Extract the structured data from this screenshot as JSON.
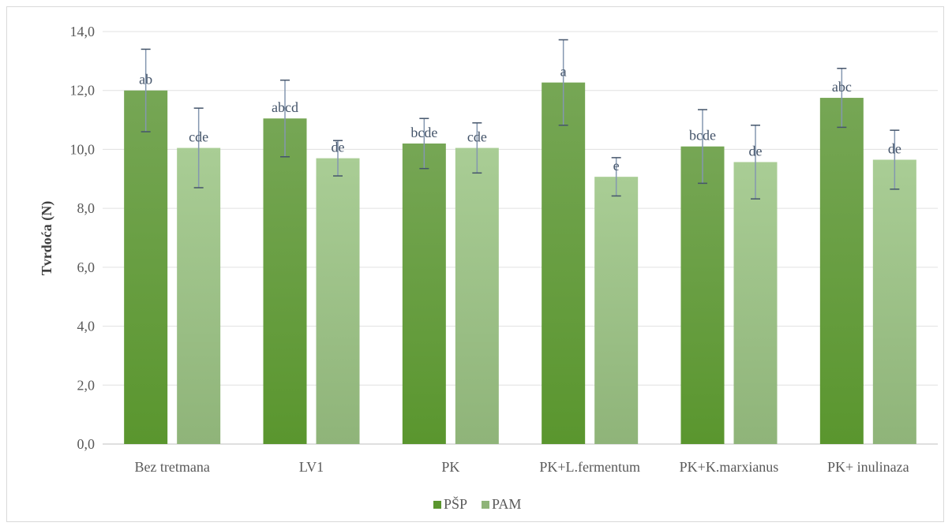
{
  "chart_data": {
    "type": "bar",
    "title": "",
    "ylabel": "Tvrdoća (N)",
    "xlabel": "",
    "ylim": [
      0,
      14
    ],
    "yticks": [
      "0,0",
      "2,0",
      "4,0",
      "6,0",
      "8,0",
      "10,0",
      "12,0",
      "14,0"
    ],
    "grid": true,
    "legend_position": "bottom",
    "categories": [
      "Bez tretmana",
      "LV1",
      "PK",
      "PK+L.fermentum",
      "PK+K.marxianus",
      "PK+ inulinaza"
    ],
    "series": [
      {
        "name": "PŠP",
        "color_top": "#76a655",
        "color_bottom": "#5a962e",
        "values": [
          12.0,
          11.05,
          10.2,
          12.27,
          10.1,
          11.75
        ],
        "errors": [
          1.4,
          1.3,
          0.85,
          1.45,
          1.25,
          1.0
        ],
        "labels": [
          "ab",
          "abcd",
          "bcde",
          "a",
          "bcde",
          "abc"
        ]
      },
      {
        "name": "PAM",
        "color_top": "#a9cd95",
        "color_bottom": "#8fb479",
        "values": [
          10.05,
          9.7,
          10.05,
          9.07,
          9.57,
          9.65
        ],
        "errors": [
          1.35,
          0.6,
          0.85,
          0.65,
          1.25,
          1.0
        ],
        "labels": [
          "cde",
          "de",
          "cde",
          "e",
          "de",
          "de"
        ]
      }
    ]
  }
}
